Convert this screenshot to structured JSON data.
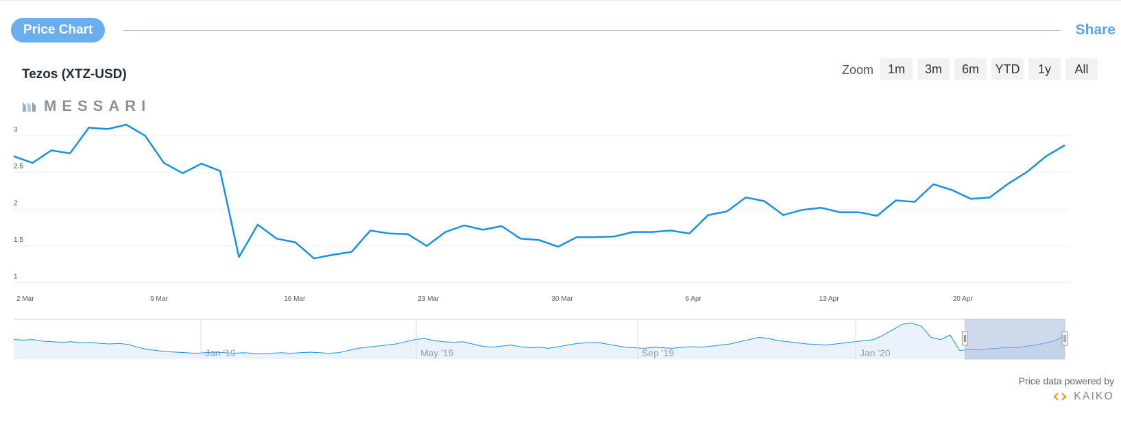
{
  "header": {
    "pill_label": "Price Chart",
    "share_label": "Share"
  },
  "asset_title": "Tezos (XTZ-USD)",
  "logo_text": "MESSARI",
  "zoom": {
    "label": "Zoom",
    "buttons": [
      "1m",
      "3m",
      "6m",
      "YTD",
      "1y",
      "All"
    ]
  },
  "footer": {
    "powered_by": "Price data powered by",
    "provider": "KAIKO"
  },
  "colors": {
    "line": "#1591e6",
    "navigator_fill": "#eaf3fb",
    "selection": "#9db3da",
    "accent": "#5ba4ef"
  },
  "chart_data": {
    "type": "line",
    "title": "Tezos (XTZ-USD)",
    "x_start_label": "2 Mar",
    "y_ticks": [
      "1",
      "1.5",
      "2",
      "2.5",
      "3"
    ],
    "ylim": [
      1,
      3
    ],
    "x_ticks": [
      {
        "label": "2 Mar",
        "day": 0
      },
      {
        "label": "9 Mar",
        "day": 7
      },
      {
        "label": "16 Mar",
        "day": 14
      },
      {
        "label": "23 Mar",
        "day": 21
      },
      {
        "label": "30 Mar",
        "day": 28
      },
      {
        "label": "6 Apr",
        "day": 35
      },
      {
        "label": "13 Apr",
        "day": 42
      },
      {
        "label": "20 Apr",
        "day": 49
      }
    ],
    "x_max_day": 55,
    "series": [
      {
        "values": [
          2.72,
          2.63,
          2.8,
          2.76,
          3.11,
          3.09,
          3.15,
          3.0,
          2.63,
          2.49,
          2.62,
          2.52,
          1.35,
          1.79,
          1.6,
          1.55,
          1.33,
          1.38,
          1.42,
          1.71,
          1.67,
          1.66,
          1.5,
          1.69,
          1.78,
          1.72,
          1.77,
          1.6,
          1.58,
          1.49,
          1.62,
          1.62,
          1.63,
          1.69,
          1.69,
          1.71,
          1.67,
          1.92,
          1.97,
          2.16,
          2.11,
          1.92,
          1.99,
          2.02,
          1.96,
          1.96,
          1.91,
          2.12,
          2.1,
          2.34,
          2.26,
          2.14,
          2.16,
          2.35,
          2.51,
          2.72,
          2.87
        ]
      }
    ],
    "grid": true,
    "legend": "none",
    "navigator": {
      "labels": [
        "Jan '19",
        "May '19",
        "Sep '19",
        "Jan '20"
      ],
      "values": [
        2.5,
        2.45,
        2.5,
        2.35,
        2.3,
        2.25,
        2.3,
        2.2,
        2.25,
        2.15,
        2.1,
        2.15,
        2.05,
        1.8,
        1.6,
        1.5,
        1.4,
        1.35,
        1.3,
        1.25,
        1.3,
        1.35,
        1.3,
        1.25,
        1.3,
        1.25,
        1.2,
        1.25,
        1.3,
        1.25,
        1.3,
        1.35,
        1.3,
        1.25,
        1.3,
        1.5,
        1.7,
        1.8,
        1.9,
        2.0,
        2.1,
        2.3,
        2.5,
        2.6,
        2.4,
        2.3,
        2.25,
        2.3,
        2.1,
        1.9,
        1.8,
        1.9,
        2.0,
        1.85,
        1.75,
        1.8,
        1.7,
        1.85,
        2.0,
        2.15,
        2.2,
        2.25,
        2.1,
        1.95,
        1.8,
        1.75,
        1.7,
        1.8,
        1.75,
        1.7,
        1.8,
        1.85,
        1.8,
        1.9,
        2.0,
        2.1,
        2.3,
        2.5,
        2.7,
        2.6,
        2.4,
        2.3,
        2.2,
        2.1,
        2.05,
        2.0,
        2.1,
        2.2,
        2.3,
        2.4,
        2.5,
        2.9,
        3.4,
        3.9,
        4.0,
        3.7,
        2.7,
        2.5,
        2.9,
        1.5,
        1.6,
        1.55,
        1.65,
        1.7,
        1.8,
        1.75,
        1.9,
        2.0,
        2.2,
        2.4,
        2.87
      ],
      "selection_start_fraction": 0.905
    }
  }
}
